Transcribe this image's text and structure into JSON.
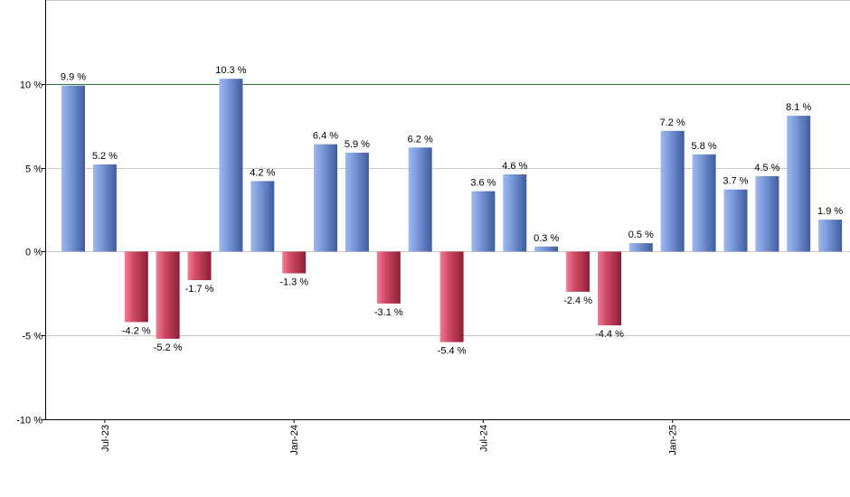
{
  "chart_data": {
    "type": "bar",
    "title": "",
    "xlabel": "",
    "ylabel": "",
    "ylim": [
      -10,
      15
    ],
    "y_ticks": [
      -10,
      -5,
      0,
      5,
      10
    ],
    "y_tick_labels": [
      "-10 %",
      "-5 %",
      "0 %",
      "5 %",
      "10 %"
    ],
    "reference_line": 10,
    "grid": true,
    "x_tick_labels": [
      {
        "index": 1,
        "label": "Jul-23"
      },
      {
        "index": 7,
        "label": "Jan-24"
      },
      {
        "index": 13,
        "label": "Jul-24"
      },
      {
        "index": 19,
        "label": "Jan-25"
      }
    ],
    "values": [
      9.9,
      5.2,
      -4.2,
      -5.2,
      -1.7,
      10.3,
      4.2,
      -1.3,
      6.4,
      5.9,
      -3.1,
      6.2,
      -5.4,
      3.6,
      4.6,
      0.3,
      -2.4,
      -4.4,
      0.5,
      7.2,
      5.8,
      3.7,
      4.5,
      8.1,
      1.9
    ],
    "value_labels": [
      "9.9 %",
      "5.2 %",
      "-4.2 %",
      "-5.2 %",
      "-1.7 %",
      "10.3 %",
      "4.2 %",
      "-1.3 %",
      "6.4 %",
      "5.9 %",
      "-3.1 %",
      "6.2 %",
      "-5.4 %",
      "3.6 %",
      "4.6 %",
      "0.3 %",
      "-2.4 %",
      "-4.4 %",
      "0.5 %",
      "7.2 %",
      "5.8 %",
      "3.7 %",
      "4.5 %",
      "8.1 %",
      "1.9 %"
    ],
    "colors": {
      "positive": "#7a9ad8",
      "negative": "#c8405e",
      "reference_line": "#2e7d32",
      "grid": "#c8c8c8",
      "axis": "#000000"
    }
  }
}
